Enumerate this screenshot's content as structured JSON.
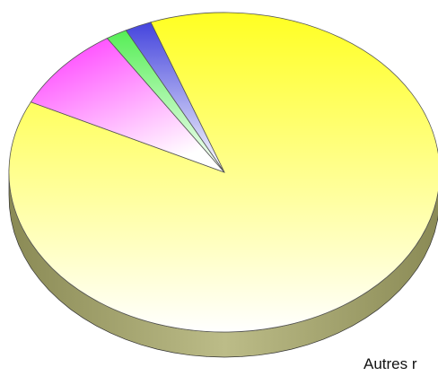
{
  "chart_data": {
    "type": "pie",
    "title": "",
    "style": "3d",
    "slices": [
      {
        "label": "",
        "value": 87.8,
        "color": "#ffff33"
      },
      {
        "label": "",
        "value": 8.6,
        "color": "#ff33ff"
      },
      {
        "label": "",
        "value": 1.6,
        "color": "#33cc33"
      },
      {
        "label": "",
        "value": 2.0,
        "color": "#3333cc"
      }
    ],
    "visible_text": "Autres r"
  }
}
